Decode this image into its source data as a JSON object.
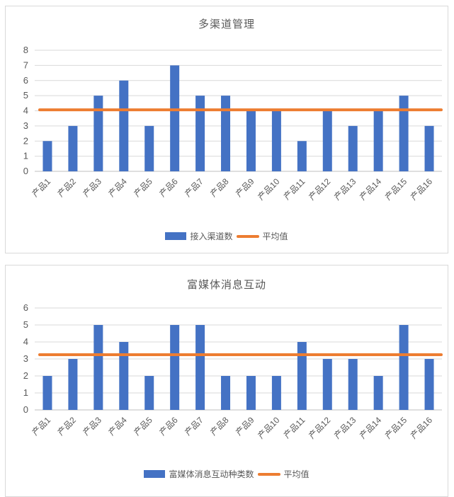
{
  "colors": {
    "bar_blue": "#4472C4",
    "line_orange": "#ED7D31",
    "gridline": "#D9D9D9",
    "axis_line": "#BFBFBF",
    "label_text": "#595959",
    "panel_border": "#D9D9D9",
    "background": "#FFFFFF"
  },
  "chart_data": [
    {
      "type": "bar",
      "title": "多渠道管理",
      "categories": [
        "产品1",
        "产品2",
        "产品3",
        "产品4",
        "产品5",
        "产品6",
        "产品7",
        "产品8",
        "产品9",
        "产品10",
        "产品11",
        "产品12",
        "产品13",
        "产品14",
        "产品15",
        "产品16"
      ],
      "series": [
        {
          "name": "接入渠道数",
          "type": "bar",
          "color": "#4472C4",
          "values": [
            2,
            3,
            5,
            6,
            3,
            7,
            5,
            5,
            4,
            4,
            2,
            4,
            3,
            4,
            5,
            3
          ]
        },
        {
          "name": "平均值",
          "type": "line",
          "color": "#ED7D31",
          "value": 4.0625
        }
      ],
      "xlabel": "",
      "ylabel": "",
      "ylim": [
        0,
        8
      ],
      "ytick_step": 1,
      "grid": true,
      "legend_position": "bottom",
      "xtick_rotation_deg": 45
    },
    {
      "type": "bar",
      "title": "富媒体消息互动",
      "categories": [
        "产品1",
        "产品2",
        "产品3",
        "产品4",
        "产品5",
        "产品6",
        "产品7",
        "产品8",
        "产品9",
        "产品10",
        "产品11",
        "产品12",
        "产品13",
        "产品14",
        "产品15",
        "产品16"
      ],
      "series": [
        {
          "name": "富媒体消息互动种类数",
          "type": "bar",
          "color": "#4472C4",
          "values": [
            2,
            3,
            5,
            4,
            2,
            5,
            5,
            2,
            2,
            2,
            4,
            3,
            3,
            2,
            5,
            3
          ]
        },
        {
          "name": "平均值",
          "type": "line",
          "color": "#ED7D31",
          "value": 3.25
        }
      ],
      "xlabel": "",
      "ylabel": "",
      "ylim": [
        0,
        6
      ],
      "ytick_step": 1,
      "grid": true,
      "legend_position": "bottom",
      "xtick_rotation_deg": 45
    }
  ]
}
